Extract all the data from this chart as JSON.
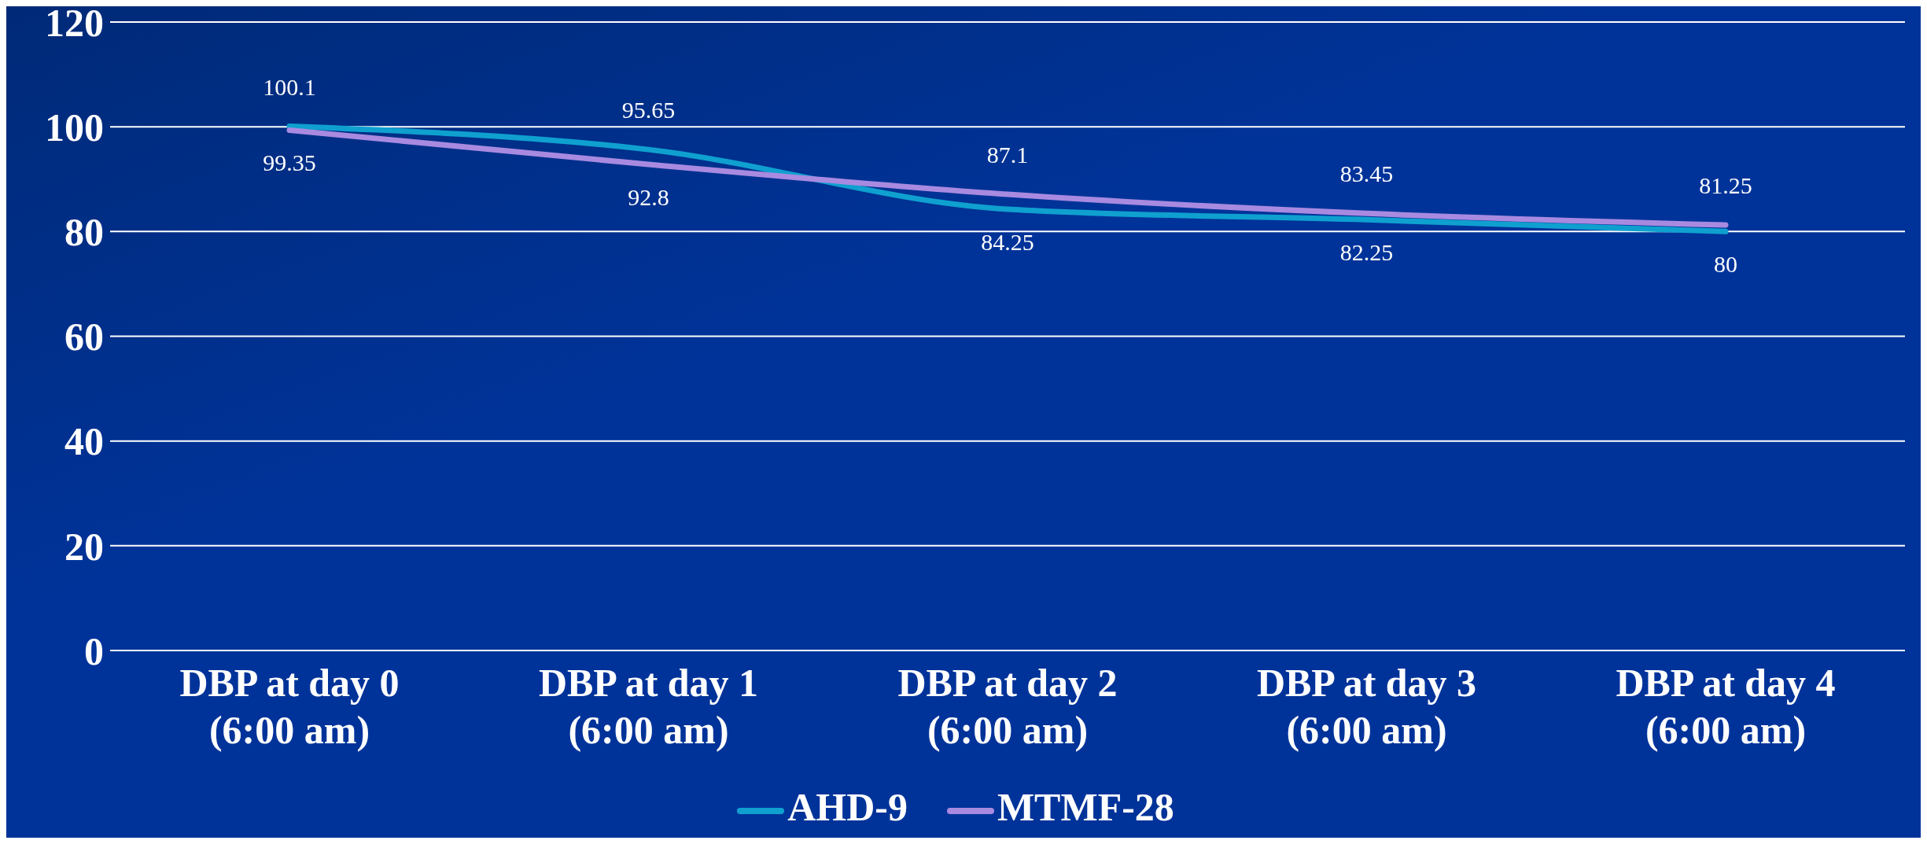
{
  "chart_data": {
    "type": "line",
    "categories": [
      "DBP at day 0\n(6:00 am)",
      "DBP at day 1\n(6:00 am)",
      "DBP at day 2\n(6:00 am)",
      "DBP at day 3\n(6:00 am)",
      "DBP at day 4\n(6:00 am)"
    ],
    "series": [
      {
        "name": "AHD-9",
        "color": "#0fa0cf",
        "values": [
          100.1,
          95.65,
          84.25,
          82.25,
          80
        ]
      },
      {
        "name": "MTMF-28",
        "color": "#a88ae0",
        "values": [
          99.35,
          92.8,
          87.1,
          83.45,
          81.25
        ]
      }
    ],
    "ylim": [
      0,
      120
    ],
    "yticks": [
      0,
      20,
      40,
      60,
      80,
      100,
      120
    ],
    "grid": "y",
    "legend": "bottom",
    "marker": "none",
    "line_style": "solid",
    "data_labels": true
  }
}
